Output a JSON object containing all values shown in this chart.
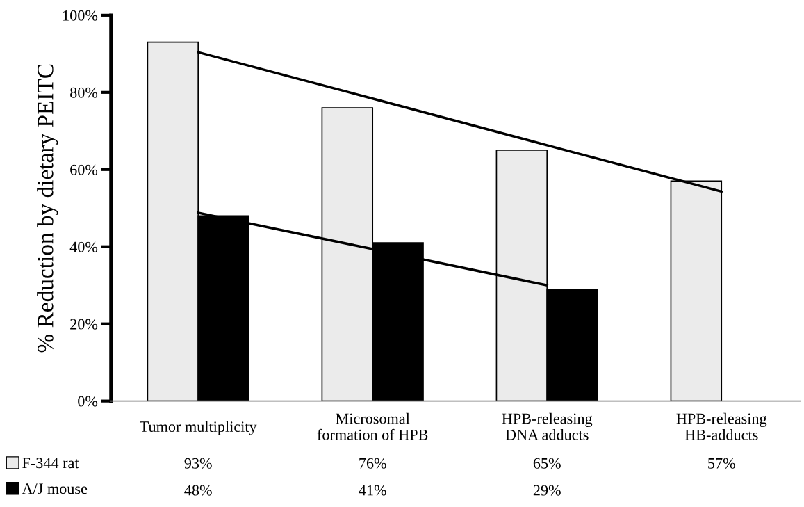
{
  "chart_data": {
    "type": "bar",
    "ylabel": "% Reduction by dietary PEITC",
    "categories": [
      "Tumor multiplicity",
      "Microsomal\nformation of HPB",
      "HPB-releasing\nDNA adducts",
      "HPB-releasing\nHB-adducts"
    ],
    "series": [
      {
        "name": "F-344 rat",
        "color": "#ebebeb",
        "values": [
          93,
          76,
          65,
          57
        ],
        "value_labels": [
          "93%",
          "76%",
          "65%",
          "57%"
        ]
      },
      {
        "name": "A/J mouse",
        "color": "#000000",
        "values": [
          48,
          41,
          29,
          null
        ],
        "value_labels": [
          "48%",
          "41%",
          "29%",
          null
        ]
      },
      {
        "type": "line",
        "color": "#000000",
        "values": [
          90.4,
          78.4,
          66.3,
          54.3
        ]
      },
      {
        "type": "line",
        "color": "#000000",
        "values": [
          48.8,
          39.4,
          30.0,
          null
        ]
      }
    ],
    "ylim": [
      0,
      100
    ],
    "yticks": [
      {
        "value": 0,
        "label": "0%"
      },
      {
        "value": 20,
        "label": "20%"
      },
      {
        "value": 40,
        "label": "40%"
      },
      {
        "value": 60,
        "label": "60%"
      },
      {
        "value": 80,
        "label": "80%"
      },
      {
        "value": 100,
        "label": "100%"
      }
    ],
    "legend": "bottom left",
    "grid": false
  }
}
